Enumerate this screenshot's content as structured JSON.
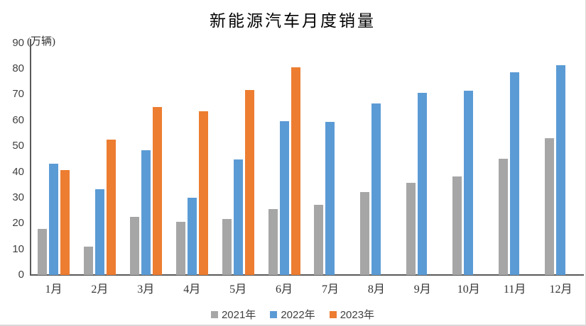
{
  "chart_data": {
    "type": "bar",
    "title": "新能源汽车月度销量",
    "ylabel": "(万辆)",
    "xlabel": "",
    "categories": [
      "1月",
      "2月",
      "3月",
      "4月",
      "5月",
      "6月",
      "7月",
      "8月",
      "9月",
      "10月",
      "11月",
      "12月"
    ],
    "series": [
      {
        "name": "2021年",
        "color": "#a6a6a6",
        "values": [
          17.9,
          11.0,
          22.6,
          20.6,
          21.7,
          25.6,
          27.1,
          32.1,
          35.7,
          38.3,
          45.0,
          53.1
        ]
      },
      {
        "name": "2022年",
        "color": "#5b9bd5",
        "values": [
          43.1,
          33.4,
          48.4,
          29.9,
          44.7,
          59.6,
          59.3,
          66.6,
          70.8,
          71.4,
          78.6,
          81.4
        ]
      },
      {
        "name": "2023年",
        "color": "#ed7d31",
        "values": [
          40.8,
          52.5,
          65.3,
          63.6,
          71.7,
          80.6,
          null,
          null,
          null,
          null,
          null,
          null
        ]
      }
    ],
    "ylim": [
      0,
      90
    ],
    "yticks": [
      0,
      10,
      20,
      30,
      40,
      50,
      60,
      70,
      80,
      90
    ],
    "grid": false,
    "legend_position": "bottom"
  }
}
